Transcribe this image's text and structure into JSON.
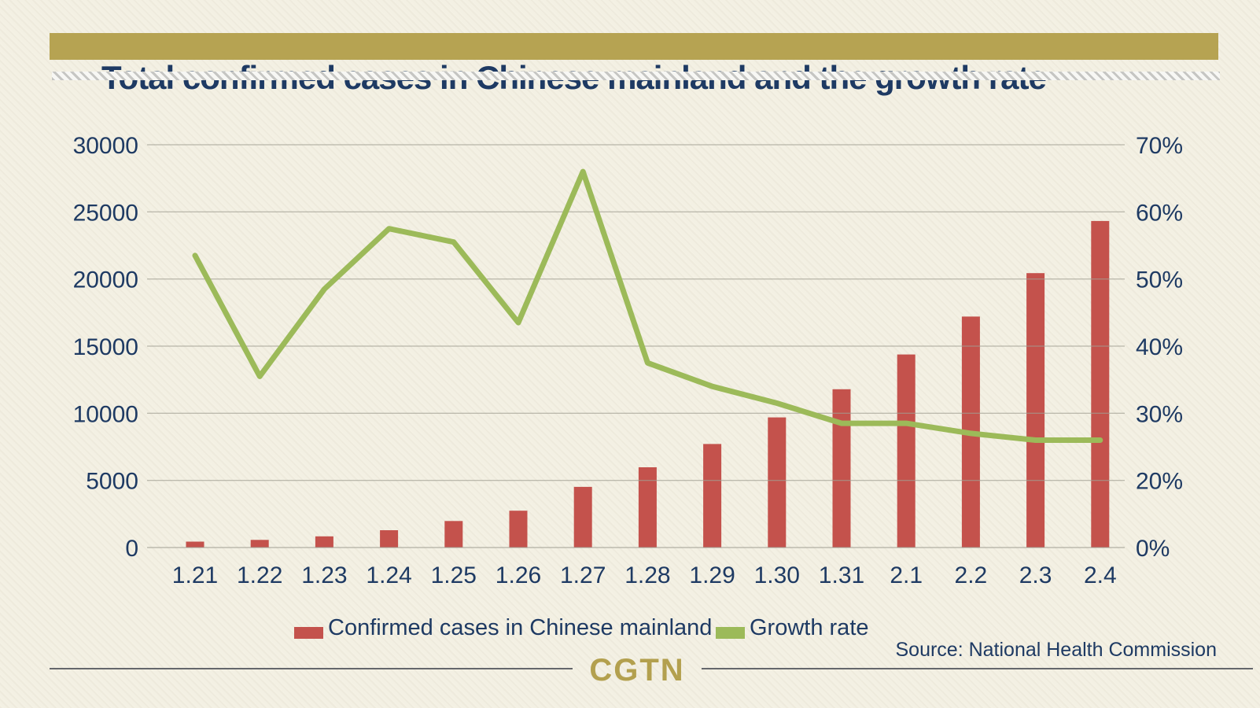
{
  "title": "Total confirmed cases in Chinese mainland and the growth rate",
  "source_note": "Source: National Health Commission",
  "logo_text": "CGTN",
  "colors": {
    "title_bar_gold": "#b6a352",
    "navy_text": "#1e3a63",
    "bar_red": "#c4524c",
    "line_green": "#9cba59",
    "gridline_gray": "#a19f93",
    "logo_gold": "#b3a04e",
    "background_cream": "#f3f0e3"
  },
  "legend": {
    "cases_label": "Confirmed cases in Chinese mainland",
    "growth_label": "Growth rate"
  },
  "chart_data": {
    "type": "bar",
    "subtype": "bar+line dual axis",
    "title": "Total confirmed cases in Chinese mainland and the growth rate",
    "categories": [
      "1.21",
      "1.22",
      "1.23",
      "1.24",
      "1.25",
      "1.26",
      "1.27",
      "1.28",
      "1.29",
      "1.30",
      "1.31",
      "2.1",
      "2.2",
      "2.3",
      "2.4"
    ],
    "series": [
      {
        "name": "Confirmed cases in Chinese mainland",
        "type": "bar",
        "axis": "left",
        "color": "#c4524c",
        "values": [
          440,
          571,
          830,
          1287,
          1975,
          2744,
          4515,
          5974,
          7711,
          9692,
          11791,
          14380,
          17205,
          20438,
          24324
        ]
      },
      {
        "name": "Growth rate",
        "type": "line",
        "axis": "right",
        "unit": "%",
        "color": "#9cba59",
        "values": [
          53.5,
          35.5,
          48.5,
          57.5,
          55.5,
          43.5,
          66,
          37.5,
          34,
          31.5,
          28.5,
          28.5,
          27,
          26,
          26
        ]
      }
    ],
    "y_left": {
      "tick_labels": [
        "30000",
        "25000",
        "20000",
        "15000",
        "10000",
        "5000",
        "0"
      ],
      "tick_values": [
        30000,
        25000,
        20000,
        15000,
        10000,
        5000,
        0
      ],
      "range": [
        0,
        30000
      ]
    },
    "y_right": {
      "tick_labels": [
        "70%",
        "60%",
        "50%",
        "40%",
        "30%",
        "20%",
        "0%"
      ],
      "tick_values": [
        70,
        60,
        50,
        40,
        30,
        20,
        0
      ],
      "note": "non-linear axis as printed: 10% tick skipped, 0-20% spans one gridline gap"
    },
    "grid": true,
    "legend_position": "bottom",
    "xlabel": "",
    "ylabel": ""
  }
}
